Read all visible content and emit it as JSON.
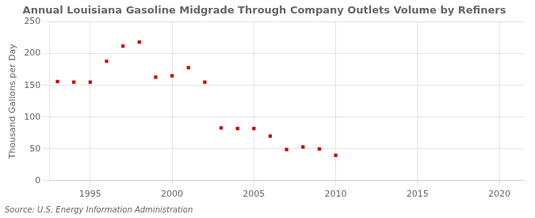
{
  "chart_data": {
    "type": "scatter",
    "title": "Annual Louisiana Gasoline Midgrade Through Company Outlets Volume by Refiners",
    "ylabel": "Thousand Gallons per Day",
    "annotations": [
      "Source: U.S. Energy Information Administration"
    ],
    "x": [
      1993,
      1994,
      1995,
      1996,
      1997,
      1998,
      1999,
      2000,
      2001,
      2002,
      2003,
      2004,
      2005,
      2006,
      2007,
      2008,
      2009,
      2010
    ],
    "values": [
      156,
      155,
      155,
      188,
      212,
      218,
      163,
      165,
      178,
      155,
      83,
      82,
      82,
      70,
      49,
      53,
      50,
      40
    ],
    "color": "#CC0000",
    "marker": "square",
    "xlim": [
      1992.5,
      2021.5
    ],
    "ylim": [
      0,
      250
    ],
    "xticks": [
      1995,
      2000,
      2005,
      2010,
      2015,
      2020
    ],
    "yticks": [
      0,
      50,
      100,
      150,
      200,
      250
    ],
    "grid": true
  }
}
